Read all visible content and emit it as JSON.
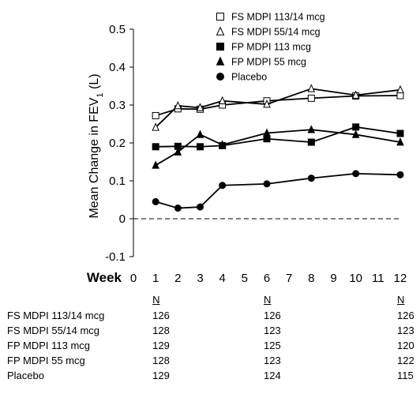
{
  "chart_data": {
    "type": "line",
    "title": "",
    "xlabel": "Week",
    "ylabel_main": "Mean Change in FEV",
    "ylabel_sub": "1",
    "ylabel_unit": " (L)",
    "xlim": [
      0,
      12
    ],
    "ylim": [
      -0.1,
      0.5
    ],
    "xticks": [
      "0",
      "1",
      "2",
      "3",
      "4",
      "5",
      "6",
      "7",
      "8",
      "9",
      "10",
      "11",
      "12"
    ],
    "yticks": [
      "-0.1",
      "0",
      "0.1",
      "0.2",
      "0.3",
      "0.4",
      "0.5"
    ],
    "reference_line": {
      "y": 0,
      "style": "dashed"
    },
    "legend_position": "top-right",
    "series": [
      {
        "name": "FS MDPI 113/14 mcg",
        "marker": "open-square",
        "x": [
          1,
          2,
          3,
          4,
          6,
          8,
          10,
          12
        ],
        "y": [
          0.272,
          0.29,
          0.289,
          0.3,
          0.311,
          0.318,
          0.324,
          0.325
        ]
      },
      {
        "name": "FS MDPI 55/14 mcg",
        "marker": "open-triangle",
        "x": [
          1,
          2,
          3,
          4,
          6,
          8,
          10,
          12
        ],
        "y": [
          0.241,
          0.298,
          0.293,
          0.311,
          0.302,
          0.343,
          0.326,
          0.34
        ]
      },
      {
        "name": "FP MDPI 113 mcg",
        "marker": "filled-square",
        "x": [
          1,
          2,
          3,
          4,
          6,
          8,
          10,
          12
        ],
        "y": [
          0.19,
          0.191,
          0.19,
          0.193,
          0.211,
          0.202,
          0.242,
          0.225
        ]
      },
      {
        "name": "FP MDPI 55 mcg",
        "marker": "filled-triangle",
        "x": [
          1,
          2,
          3,
          4,
          6,
          8,
          10,
          12
        ],
        "y": [
          0.141,
          0.176,
          0.222,
          0.195,
          0.226,
          0.235,
          0.222,
          0.202
        ]
      },
      {
        "name": "Placebo",
        "marker": "filled-circle",
        "x": [
          1,
          2,
          3,
          4,
          6,
          8,
          10,
          12
        ],
        "y": [
          0.045,
          0.028,
          0.031,
          0.088,
          0.092,
          0.107,
          0.119,
          0.116
        ]
      }
    ]
  },
  "n_table": {
    "header": "N",
    "weeks": [
      1,
      6,
      12
    ],
    "rows": [
      {
        "label": "FS MDPI 113/14 mcg",
        "values": [
          "126",
          "126",
          "126"
        ]
      },
      {
        "label": "FS MDPI 55/14 mcg",
        "values": [
          "128",
          "123",
          "123"
        ]
      },
      {
        "label": "FP MDPI 113 mcg",
        "values": [
          "129",
          "125",
          "120"
        ]
      },
      {
        "label": "FP MDPI 55 mcg",
        "values": [
          "128",
          "123",
          "122"
        ]
      },
      {
        "label": "Placebo",
        "values": [
          "129",
          "124",
          "115"
        ]
      }
    ]
  }
}
